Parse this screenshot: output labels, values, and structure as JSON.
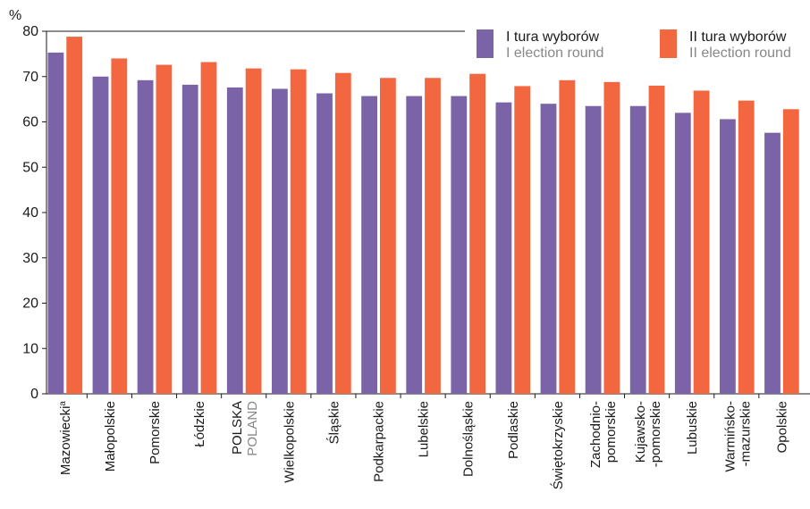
{
  "chart_data": {
    "type": "bar",
    "ylabel": "%",
    "ylim": [
      0,
      80
    ],
    "yticks": [
      0,
      10,
      20,
      30,
      40,
      50,
      60,
      70,
      80
    ],
    "grid": false,
    "legend_position": "top-right",
    "categories": [
      {
        "line1": "Mazowiecki",
        "sup": "a"
      },
      {
        "line1": "Małopolskie"
      },
      {
        "line1": "Pomorskie"
      },
      {
        "line1": "Łódzkie"
      },
      {
        "line1": "POLSKA",
        "line2": "POLAND"
      },
      {
        "line1": "Wielkopolskie"
      },
      {
        "line1": "Śląskie"
      },
      {
        "line1": "Podkarpackie"
      },
      {
        "line1": "Lubelskie"
      },
      {
        "line1": "Dolnośląskie"
      },
      {
        "line1": "Podlaskie"
      },
      {
        "line1": "Świętokrzyskie"
      },
      {
        "line1": "Zachodnio-",
        "line2": "pomorskie"
      },
      {
        "line1": "Kujawsko-",
        "line2": "-pomorskie"
      },
      {
        "line1": "Lubuskie"
      },
      {
        "line1": "Warmińsko-",
        "line2": "-mazurskie"
      },
      {
        "line1": "Opolskie"
      }
    ],
    "series": [
      {
        "name": "I tura wyborów",
        "name_en": "I election round",
        "color": "#7b63a8",
        "values": [
          75.3,
          70.0,
          69.2,
          68.2,
          67.6,
          67.3,
          66.3,
          65.7,
          65.7,
          65.7,
          64.3,
          64.0,
          63.5,
          63.5,
          62.0,
          60.6,
          57.6
        ]
      },
      {
        "name": "II tura wyborów",
        "name_en": "II election round",
        "color": "#f26640",
        "values": [
          78.8,
          74.0,
          72.6,
          73.2,
          71.8,
          71.6,
          70.8,
          69.7,
          69.7,
          70.6,
          67.9,
          69.2,
          68.8,
          68.0,
          66.9,
          64.7,
          62.8
        ]
      }
    ]
  }
}
